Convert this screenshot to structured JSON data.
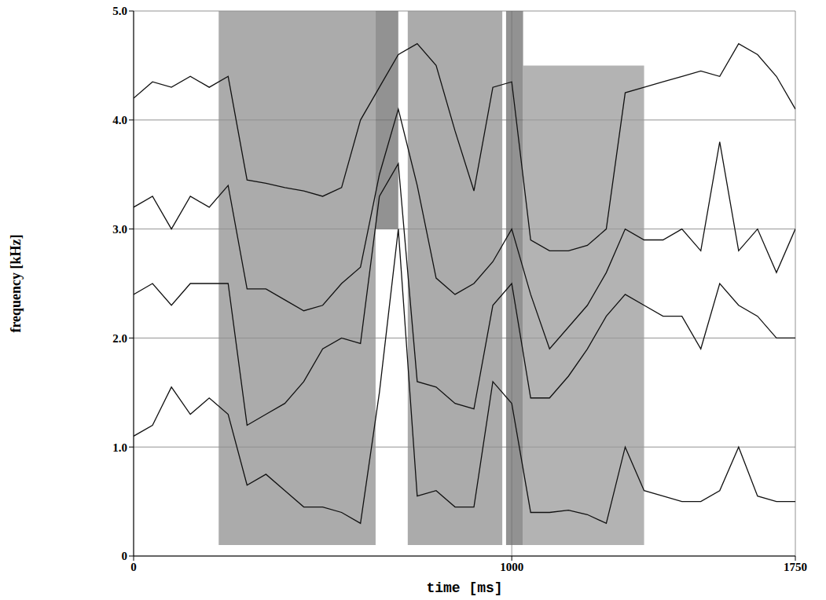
{
  "chart_data": {
    "type": "line",
    "x_label": "time [ms]",
    "y_label": "frequency [kHz]",
    "xlim": [
      0,
      1750
    ],
    "ylim": [
      0,
      5
    ],
    "xticks": [
      0,
      1000,
      1750
    ],
    "yticks": [
      0,
      {
        "value": 1,
        "label": "1.0"
      },
      {
        "value": 2,
        "label": "2.0"
      },
      {
        "value": 3,
        "label": "3.0"
      },
      {
        "value": 4,
        "label": "4.0"
      },
      {
        "value": 5,
        "label": "5.0"
      }
    ],
    "grid": true,
    "x": [
      0,
      50,
      100,
      150,
      200,
      250,
      300,
      350,
      400,
      450,
      500,
      550,
      600,
      650,
      700,
      750,
      800,
      850,
      900,
      950,
      1000,
      1050,
      1100,
      1150,
      1200,
      1250,
      1300,
      1350,
      1400,
      1450,
      1500,
      1550,
      1600,
      1650,
      1700,
      1750
    ],
    "series": [
      {
        "color": "#111111",
        "values": [
          4.2,
          4.35,
          4.3,
          4.4,
          4.3,
          4.4,
          3.45,
          3.42,
          3.38,
          3.35,
          3.3,
          3.38,
          4.0,
          4.3,
          4.6,
          4.7,
          4.5,
          3.9,
          3.35,
          4.3,
          4.35,
          2.9,
          2.8,
          2.8,
          2.85,
          3.0,
          4.25,
          4.3,
          4.35,
          4.4,
          4.45,
          4.4,
          4.7,
          4.6,
          4.4,
          4.1
        ]
      },
      {
        "color": "#111111",
        "values": [
          3.2,
          3.3,
          3.0,
          3.3,
          3.2,
          3.4,
          2.45,
          2.45,
          2.35,
          2.25,
          2.3,
          2.5,
          2.65,
          3.5,
          4.1,
          3.4,
          2.55,
          2.4,
          2.5,
          2.7,
          3.0,
          2.4,
          1.9,
          2.1,
          2.3,
          2.6,
          3.0,
          2.9,
          2.9,
          3.0,
          2.8,
          3.8,
          2.8,
          3.0,
          2.6,
          3.0
        ]
      },
      {
        "color": "#111111",
        "values": [
          2.4,
          2.5,
          2.3,
          2.5,
          2.5,
          2.5,
          1.2,
          1.3,
          1.4,
          1.6,
          1.9,
          2.0,
          1.95,
          3.3,
          3.6,
          1.6,
          1.55,
          1.4,
          1.35,
          2.3,
          2.5,
          1.45,
          1.45,
          1.65,
          1.9,
          2.2,
          2.4,
          2.3,
          2.2,
          2.2,
          1.9,
          2.5,
          2.3,
          2.2,
          2.0,
          2.0
        ]
      },
      {
        "color": "#111111",
        "values": [
          1.1,
          1.2,
          1.55,
          1.3,
          1.45,
          1.3,
          0.65,
          0.75,
          0.6,
          0.45,
          0.45,
          0.4,
          0.3,
          1.5,
          3.0,
          0.55,
          0.6,
          0.45,
          0.45,
          1.6,
          1.4,
          0.4,
          0.4,
          0.42,
          0.38,
          0.3,
          1.0,
          0.6,
          0.55,
          0.5,
          0.5,
          0.6,
          1.0,
          0.55,
          0.5,
          0.5
        ]
      }
    ],
    "spectrogram": [
      {
        "start": 225,
        "end": 640,
        "low": 0.1,
        "high": 5.0,
        "color": "#8f8f8f"
      },
      {
        "start": 640,
        "end": 700,
        "low": 3.0,
        "high": 5.0,
        "color": "#6e6e6e"
      },
      {
        "start": 725,
        "end": 975,
        "low": 0.1,
        "high": 5.0,
        "color": "#8f8f8f"
      },
      {
        "start": 985,
        "end": 1030,
        "low": 0.1,
        "high": 5.0,
        "color": "#6e6e6e"
      },
      {
        "start": 1030,
        "end": 1350,
        "low": 0.1,
        "high": 4.5,
        "color": "#9a9a9a"
      }
    ]
  }
}
